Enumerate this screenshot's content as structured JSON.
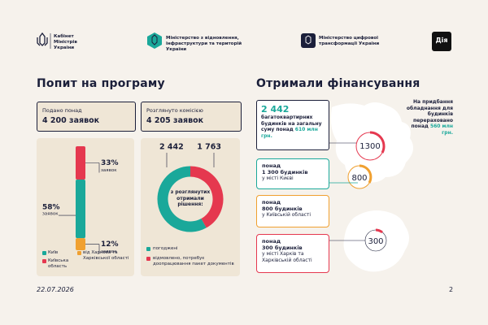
{
  "header": {
    "org1": "Кабінет Міністрів України",
    "org2": "Міністерство з відновлення, інфраструктури та територій України",
    "org3": "Міністерство цифрової трансформації України",
    "app": "Дія"
  },
  "demand": {
    "title": "Попит на програму",
    "submitted": {
      "caption": "Подано понад",
      "value": "4 200 заявок"
    },
    "reviewed": {
      "caption": "Розглянуто комісією",
      "value": "4 205 заявок"
    },
    "shares": {
      "unit": "заявок",
      "segments": [
        {
          "name": "Київ",
          "value": 58,
          "label": "58%",
          "color": "#1aa89a"
        },
        {
          "name": "Київська область",
          "value": 33,
          "label": "33%",
          "color": "#e5384f"
        },
        {
          "name": "від Харкова та Харківської області",
          "value": 12,
          "label": "12%",
          "color": "#f0a030"
        }
      ]
    },
    "decisions": {
      "center": "з розглянутих отримали рішення:",
      "segments": [
        {
          "name": "погоджені",
          "value": 2442,
          "label": "2 442",
          "color": "#1aa89a"
        },
        {
          "name": "відмовлено, потребує доопрацювання пакет документів",
          "value": 1763,
          "label": "1 763",
          "color": "#e5384f"
        }
      ]
    }
  },
  "funding": {
    "title": "Отримали фінансування",
    "total": {
      "value": "2 442",
      "text": "багатоквартирних будинків на загальну суму понад",
      "amount": "610 млн грн."
    },
    "items": [
      {
        "prefix": "понад",
        "value": "1 300 будинків",
        "place": "у місті Києві",
        "badge": "1300"
      },
      {
        "prefix": "понад",
        "value": "800 будинків",
        "place": "у Київській області",
        "badge": "800"
      },
      {
        "prefix": "понад",
        "value": "300 будинків",
        "place": "у місті Харків та Харківській області",
        "badge": "300"
      }
    ],
    "equipment": {
      "text": "На придбання обладнання для будинків перераховано понад",
      "amount": "560 млн грн."
    }
  },
  "footer": {
    "date": "22.07.2026",
    "page": "2"
  }
}
